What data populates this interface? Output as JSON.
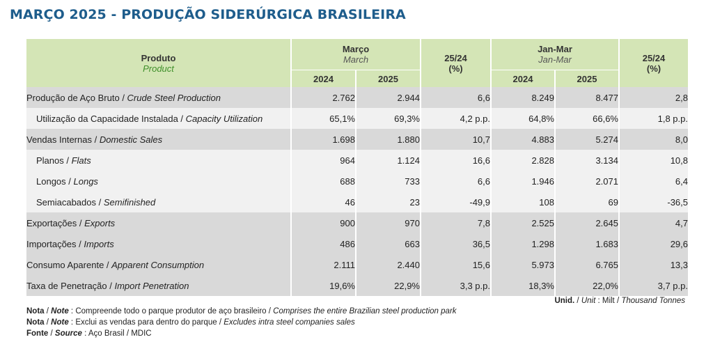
{
  "title": "MARÇO 2025 - PRODUÇÃO SIDERÚRGICA BRASILEIRA",
  "header": {
    "product_pt": "Produto",
    "product_en": "Product",
    "march_pt": "Março",
    "march_en": "March",
    "var_label": "25/24",
    "var_unit": "(%)",
    "janmar_pt": "Jan-Mar",
    "janmar_en": "Jan-Mar",
    "y1": "2024",
    "y2": "2025"
  },
  "rows": [
    {
      "pt": "Produção de Aço Bruto",
      "en": "Crude Steel Production",
      "indent": false,
      "m2024": "2.762",
      "m2025": "2.944",
      "mvar": "6,6",
      "j2024": "8.249",
      "j2025": "8.477",
      "jvar": "2,8"
    },
    {
      "pt": "Utilização da Capacidade Instalada",
      "en": "Capacity Utilization",
      "indent": true,
      "m2024": "65,1%",
      "m2025": "69,3%",
      "mvar": "4,2 p.p.",
      "j2024": "64,8%",
      "j2025": "66,6%",
      "jvar": "1,8 p.p."
    },
    {
      "pt": "Vendas Internas",
      "en": "Domestic Sales",
      "indent": false,
      "m2024": "1.698",
      "m2025": "1.880",
      "mvar": "10,7",
      "j2024": "4.883",
      "j2025": "5.274",
      "jvar": "8,0"
    },
    {
      "pt": "Planos",
      "en": "Flats",
      "indent": true,
      "m2024": "964",
      "m2025": "1.124",
      "mvar": "16,6",
      "j2024": "2.828",
      "j2025": "3.134",
      "jvar": "10,8"
    },
    {
      "pt": "Longos",
      "en": "Longs",
      "indent": true,
      "m2024": "688",
      "m2025": "733",
      "mvar": "6,6",
      "j2024": "1.946",
      "j2025": "2.071",
      "jvar": "6,4"
    },
    {
      "pt": "Semiacabados",
      "en": "Semifinished",
      "indent": true,
      "m2024": "46",
      "m2025": "23",
      "mvar": "-49,9",
      "j2024": "108",
      "j2025": "69",
      "jvar": "-36,5"
    },
    {
      "pt": "Exportações",
      "en": "Exports",
      "indent": false,
      "m2024": "900",
      "m2025": "970",
      "mvar": "7,8",
      "j2024": "2.525",
      "j2025": "2.645",
      "jvar": "4,7"
    },
    {
      "pt": "Importações",
      "en": "Imports",
      "indent": false,
      "m2024": "486",
      "m2025": "663",
      "mvar": "36,5",
      "j2024": "1.298",
      "j2025": "1.683",
      "jvar": "29,6"
    },
    {
      "pt": "Consumo Aparente",
      "en": "Apparent Consumption",
      "indent": false,
      "m2024": "2.111",
      "m2025": "2.440",
      "mvar": "15,6",
      "j2024": "5.973",
      "j2025": "6.765",
      "jvar": "13,3"
    },
    {
      "pt": "Taxa de Penetração",
      "en": "Import Penetration",
      "indent": false,
      "m2024": "19,6%",
      "m2025": "22,9%",
      "mvar": "3,3 p.p.",
      "j2024": "18,3%",
      "j2025": "22,0%",
      "jvar": "3,7 p.p."
    }
  ],
  "unit": {
    "label_pt": "Unid.",
    "label_en": "Unit",
    "value_pt": "Milt",
    "value_en": "Thousand Tonnes"
  },
  "notes": [
    {
      "label_pt": "Nota",
      "label_en": "Note",
      "text_pt": "Compreende todo o parque produtor de aço brasileiro",
      "text_en": "Comprises the entire Brazilian steel production park"
    },
    {
      "label_pt": "Nota",
      "label_en": "Note",
      "text_pt": "Exclui as vendas para dentro do parque",
      "text_en": "Excludes intra steel companies sales"
    }
  ],
  "source": {
    "label_pt": "Fonte",
    "label_en": "Source",
    "text": "Aço Brasil / MDIC"
  },
  "colors": {
    "title": "#1e5d8c",
    "header_bg": "#d4e5b6",
    "row_main_bg": "#d9d9d9",
    "row_sub_bg": "#f1f1f1"
  }
}
